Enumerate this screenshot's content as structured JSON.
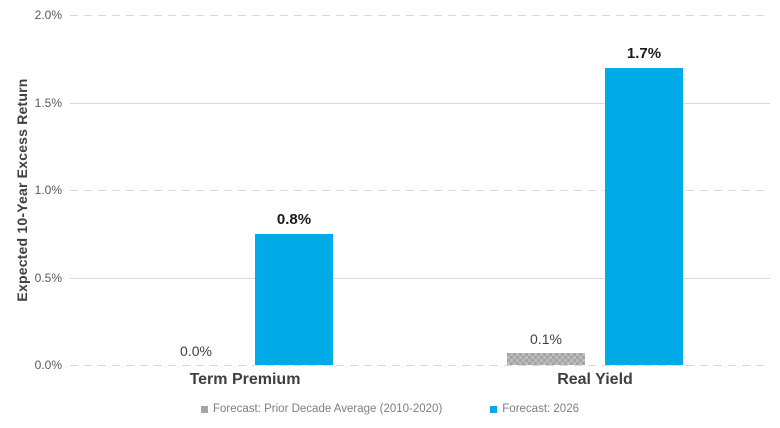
{
  "chart_data": {
    "type": "bar",
    "title": "",
    "ylabel": "Expected 10-Year Excess Return",
    "ylim": [
      0,
      2.0
    ],
    "yticks": [
      "0.0%",
      "0.5%",
      "1.0%",
      "1.5%",
      "2.0%"
    ],
    "grid": "horizontal, light gray, alternating dashed/solid",
    "legend_position": "bottom",
    "categories": [
      "Term Premium",
      "Real Yield"
    ],
    "series": [
      {
        "name": "Forecast: Prior Decade Average (2010-2020)",
        "color": "#a6a6a6",
        "style": "checkered-gray",
        "values": [
          0.0,
          0.07
        ],
        "labels": [
          "0.0%",
          "0.1%"
        ]
      },
      {
        "name": "Forecast: 2026",
        "color": "#00abe8",
        "style": "solid-blue",
        "values": [
          0.75,
          1.7
        ],
        "labels": [
          "0.8%",
          "1.7%"
        ]
      }
    ]
  },
  "colors": {
    "accent_blue": "#00abe8",
    "series_gray": "#a6a6a6",
    "gridline": "#d9d9d9",
    "tick_text": "#595959",
    "axis_title_text": "#404040",
    "category_text": "#3f3f3f",
    "legend_text": "#7f7f7f"
  }
}
